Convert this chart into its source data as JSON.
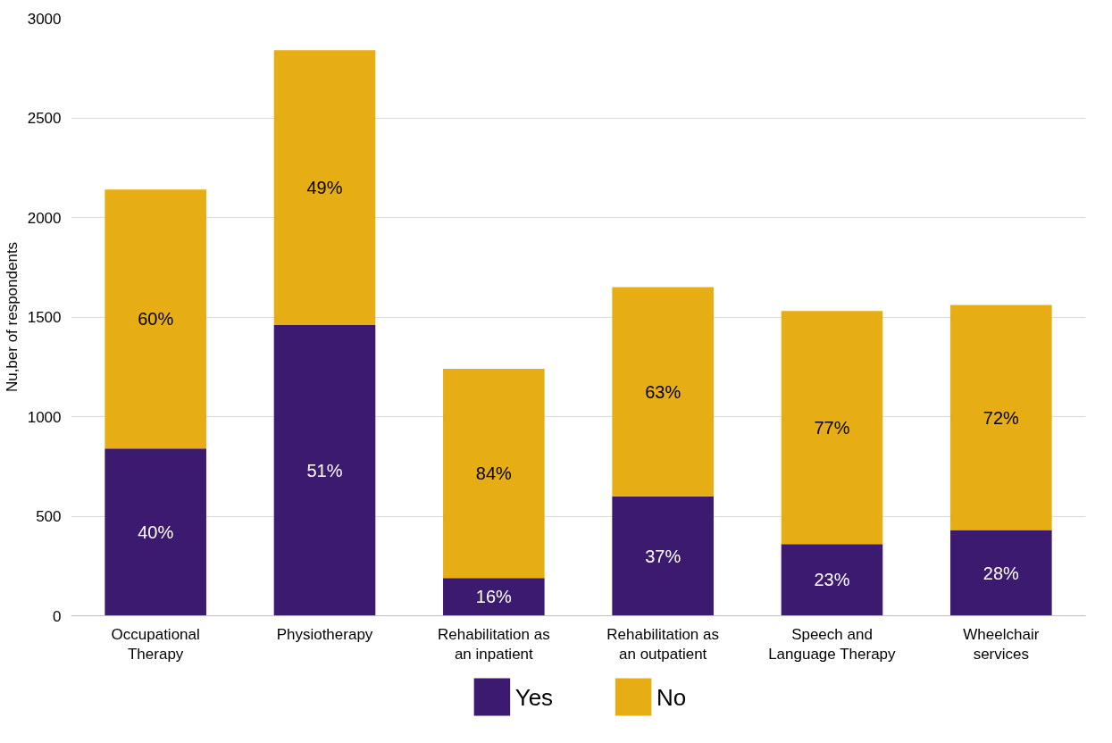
{
  "chart_data": {
    "type": "bar",
    "stacked": true,
    "ylabel": "Nu,ber of respondents",
    "categories": [
      "Occupational Therapy",
      "Physiotherapy",
      "Rehabilitation as an inpatient",
      "Rehabilitation as an outpatient",
      "Speech and Language Therapy",
      "Wheelchair services"
    ],
    "series": [
      {
        "name": "Yes",
        "color": "#3c1a70",
        "values": [
          840,
          1460,
          190,
          600,
          360,
          430
        ]
      },
      {
        "name": "No",
        "color": "#e6ae14",
        "values": [
          1300,
          1380,
          1050,
          1050,
          1170,
          1130
        ]
      }
    ],
    "annotations": [
      "40%",
      "51%",
      "16%",
      "37%",
      "23%",
      "28%",
      "60%",
      "49%",
      "84%",
      "63%",
      "77%",
      "72%"
    ],
    "ylim": [
      0,
      3000
    ],
    "yticks": [
      0,
      500,
      1000,
      1500,
      2000,
      2500,
      3000
    ],
    "grid": "y",
    "legend": "bottom"
  }
}
